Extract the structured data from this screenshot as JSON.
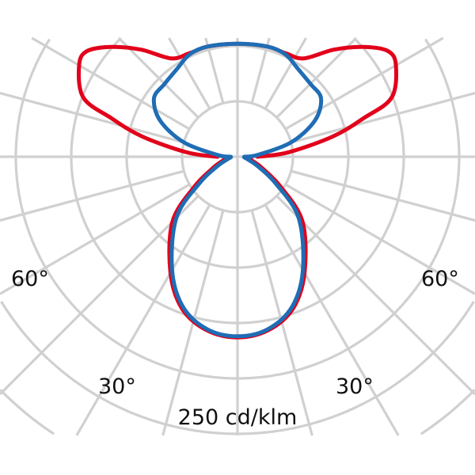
{
  "chart_data": {
    "type": "polar",
    "angle_labels": [
      "60°",
      "30°",
      "30°",
      "60°"
    ],
    "scale_label": "250 cd/klm",
    "radial_max": 250,
    "ring_step": 50,
    "spoke_step_deg": 15,
    "grid": true,
    "grid_color": "#d0d0d0",
    "series": [
      {
        "color": "#e2001a",
        "points": [
          [
            0,
            163
          ],
          [
            10,
            159
          ],
          [
            20,
            146
          ],
          [
            30,
            121
          ],
          [
            45,
            83
          ],
          [
            55,
            48
          ],
          [
            65,
            25
          ],
          [
            75,
            14
          ],
          [
            85,
            10
          ],
          [
            90,
            18
          ],
          [
            95,
            46
          ],
          [
            102,
            88
          ],
          [
            107,
            119
          ],
          [
            111,
            149
          ],
          [
            120,
            165
          ],
          [
            125,
            166
          ],
          [
            131,
            151
          ],
          [
            138,
            130
          ],
          [
            146,
            107
          ],
          [
            155,
            103
          ],
          [
            165,
            103
          ],
          [
            180,
            102
          ]
        ]
      },
      {
        "color": "#1f6db5",
        "points": [
          [
            0,
            162
          ],
          [
            10,
            158
          ],
          [
            20,
            144
          ],
          [
            30,
            118
          ],
          [
            45,
            78
          ],
          [
            55,
            42
          ],
          [
            65,
            20
          ],
          [
            75,
            10
          ],
          [
            85,
            6
          ],
          [
            90,
            6
          ],
          [
            95,
            18
          ],
          [
            105,
            50
          ],
          [
            115,
            77
          ],
          [
            125,
            92
          ],
          [
            135,
            93
          ],
          [
            145,
            96
          ],
          [
            155,
            102
          ],
          [
            165,
            103
          ],
          [
            180,
            102
          ]
        ]
      }
    ]
  }
}
